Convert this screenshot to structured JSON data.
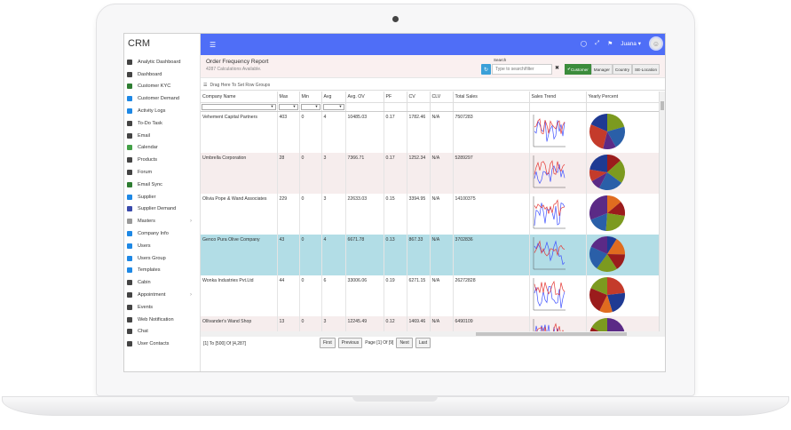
{
  "app": {
    "brand": "CRM",
    "user": "Juana"
  },
  "sidebar": {
    "items": [
      {
        "label": "Analytic Dashboard",
        "icon": "home-icon",
        "color": "#444"
      },
      {
        "label": "Dashboard",
        "icon": "dashboard-icon",
        "color": "#444"
      },
      {
        "label": "Customer KYC",
        "icon": "kyc-icon",
        "color": "#2e7d32"
      },
      {
        "label": "Customer Demand",
        "icon": "demand-icon",
        "color": "#1e88e5"
      },
      {
        "label": "Activity Logs",
        "icon": "log-icon",
        "color": "#1e88e5"
      },
      {
        "label": "To-Do Task",
        "icon": "task-icon",
        "color": "#444"
      },
      {
        "label": "Email",
        "icon": "email-icon",
        "color": "#444"
      },
      {
        "label": "Calendar",
        "icon": "calendar-icon",
        "color": "#43a047"
      },
      {
        "label": "Products",
        "icon": "cart-icon",
        "color": "#444"
      },
      {
        "label": "Forum",
        "icon": "forum-icon",
        "color": "#444"
      },
      {
        "label": "Email Sync",
        "icon": "sync-icon",
        "color": "#2e7d32"
      },
      {
        "label": "Supplier",
        "icon": "truck-icon",
        "color": "#1e88e5"
      },
      {
        "label": "Supplier Demand",
        "icon": "supplier-demand-icon",
        "color": "#3949ab"
      },
      {
        "label": "Masters",
        "icon": "masters-icon",
        "color": "#999",
        "chevron": "›"
      },
      {
        "label": "Company Info",
        "icon": "company-icon",
        "color": "#1e88e5"
      },
      {
        "label": "Users",
        "icon": "user-icon",
        "color": "#1e88e5"
      },
      {
        "label": "Users Group",
        "icon": "users-group-icon",
        "color": "#1e88e5"
      },
      {
        "label": "Templates",
        "icon": "template-icon",
        "color": "#1e88e5"
      },
      {
        "label": "Cabin",
        "icon": "cabin-icon",
        "color": "#444"
      },
      {
        "label": "Appointment",
        "icon": "appointment-icon",
        "color": "#444",
        "chevron": "›"
      },
      {
        "label": "Events",
        "icon": "events-icon",
        "color": "#444"
      },
      {
        "label": "Web Notification",
        "icon": "notification-icon",
        "color": "#444"
      },
      {
        "label": "Chat",
        "icon": "chat-icon",
        "color": "#444"
      },
      {
        "label": "User Contacts",
        "icon": "contacts-icon",
        "color": "#444"
      }
    ]
  },
  "report": {
    "title": "Order Frequency Report",
    "subtitle": "4287 Calculations Available.",
    "search_label": "Search",
    "search_placeholder": "Type to search/filter",
    "filters": [
      "Customer",
      "Manager",
      "Country",
      "SE-Location"
    ],
    "active_filter": "Customer",
    "group_bar": "Drag Here To Set Row Groups"
  },
  "table": {
    "columns": [
      "Company Name",
      "Max",
      "Min",
      "Avg",
      "Avg. OV",
      "PF",
      "CV",
      "CLV",
      "Total Sales",
      "Sales Trend",
      "Yearly Percent"
    ],
    "rows": [
      {
        "name": "Vehement Capital Partners",
        "max": "403",
        "min": "0",
        "avg": "4",
        "avg_ov": "10485.03",
        "pf": "0.17",
        "cv": "1782.46",
        "clv": "N/A",
        "total": "7507283"
      },
      {
        "name": "Umbrella Corporation",
        "max": "28",
        "min": "0",
        "avg": "3",
        "avg_ov": "7366.71",
        "pf": "0.17",
        "cv": "1252.34",
        "clv": "N/A",
        "total": "5289297"
      },
      {
        "name": "Olivia Pope & Wand Associates",
        "max": "229",
        "min": "0",
        "avg": "3",
        "avg_ov": "22633.03",
        "pf": "0.15",
        "cv": "3394.95",
        "clv": "N/A",
        "total": "14100375"
      },
      {
        "name": "Genco Pura Olive Company",
        "max": "43",
        "min": "0",
        "avg": "4",
        "avg_ov": "6671.78",
        "pf": "0.13",
        "cv": "867.33",
        "clv": "N/A",
        "total": "3702836"
      },
      {
        "name": "Wonka Industries Pvt.Ltd",
        "max": "44",
        "min": "0",
        "avg": "6",
        "avg_ov": "33006.06",
        "pf": "0.19",
        "cv": "6271.15",
        "clv": "N/A",
        "total": "26272828"
      },
      {
        "name": "Ollivander's Wand Shop",
        "max": "13",
        "min": "0",
        "avg": "3",
        "avg_ov": "12245.49",
        "pf": "0.12",
        "cv": "1469.46",
        "clv": "N/A",
        "total": "6490109"
      }
    ],
    "selected_row": 3
  },
  "pager": {
    "info": "[1] To [500] Of [4,287]",
    "first": "First",
    "previous": "Previous",
    "page_text": "Page [1] Of [9]",
    "next": "Next",
    "last": "Last"
  },
  "colors": {
    "topbar": "#4f6ef7",
    "trend_red": "#e53935",
    "trend_blue": "#3f51ff",
    "pie": [
      "#1f3a93",
      "#e06c1f",
      "#9b1c1c",
      "#7c9a1f",
      "#2a5fa8",
      "#5b2a86",
      "#c43b2b"
    ]
  }
}
